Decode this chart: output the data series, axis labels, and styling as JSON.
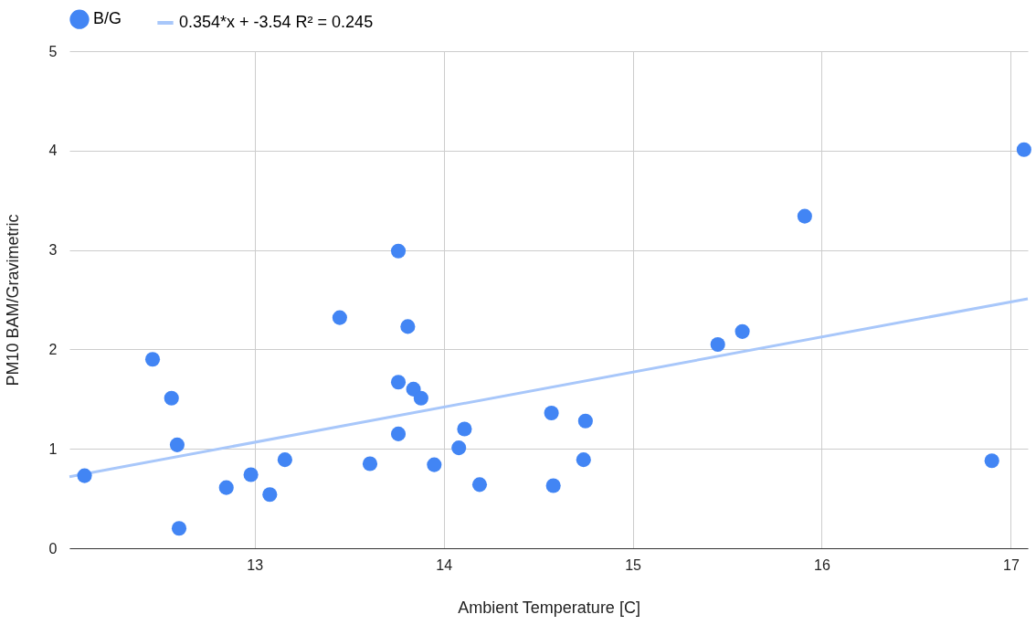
{
  "chart_data": {
    "type": "scatter",
    "xlabel": "Ambient Temperature [C]",
    "ylabel": "PM10 BAM/Gravimetric",
    "xlim": [
      12.02,
      17.09
    ],
    "ylim": [
      0,
      5
    ],
    "xticks": [
      13,
      14,
      15,
      16,
      17
    ],
    "yticks": [
      0,
      1,
      2,
      3,
      4,
      5
    ],
    "grid": true,
    "legend": "top",
    "series": [
      {
        "name": "B/G",
        "color": "#4285f4",
        "x": [
          12.1,
          12.46,
          12.56,
          12.59,
          12.6,
          12.85,
          12.98,
          13.08,
          13.16,
          13.45,
          13.61,
          13.76,
          13.76,
          13.76,
          13.81,
          13.84,
          13.88,
          13.95,
          14.08,
          14.11,
          14.19,
          14.57,
          14.58,
          14.74,
          14.75,
          15.45,
          15.58,
          15.91,
          16.9,
          17.07
        ],
        "values": [
          0.73,
          1.9,
          1.51,
          1.04,
          0.2,
          0.61,
          0.74,
          0.54,
          0.89,
          2.32,
          0.85,
          2.99,
          1.67,
          1.15,
          2.23,
          1.6,
          1.51,
          0.84,
          1.01,
          1.2,
          0.64,
          1.36,
          0.63,
          0.89,
          1.28,
          2.05,
          2.18,
          3.34,
          0.88,
          4.01
        ]
      },
      {
        "name": "0.354*x + -3.54 R² = 0.245",
        "type": "line",
        "color": "#a8c7fa",
        "x": [
          12.02,
          17.09
        ],
        "values": [
          0.72,
          2.51
        ]
      }
    ]
  }
}
